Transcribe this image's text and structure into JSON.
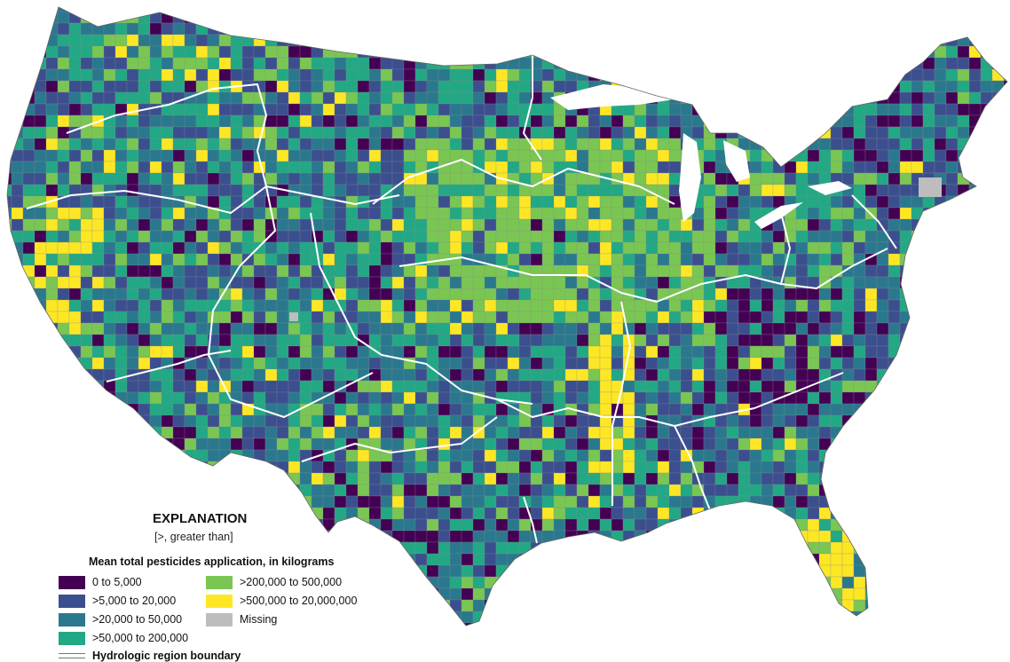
{
  "map": {
    "palette": {
      "class_0": "#440154",
      "class_1": "#3b4f8f",
      "class_2": "#2a788e",
      "class_3": "#22a884",
      "class_4": "#7ac653",
      "class_5": "#fde725",
      "missing": "#bdbdbd"
    },
    "boundary_color": "#ffffff"
  },
  "legend": {
    "title": "EXPLANATION",
    "subtitle": "[>, greater than]",
    "heading": "Mean total pesticides application, in kilograms",
    "items": [
      {
        "label": "0 to 5,000",
        "color": "#440154"
      },
      {
        "label": ">5,000 to 20,000",
        "color": "#3b4f8f"
      },
      {
        "label": ">20,000 to 50,000",
        "color": "#2a788e"
      },
      {
        "label": ">50,000 to 200,000",
        "color": "#22a884"
      },
      {
        "label": ">200,000 to 500,000",
        "color": "#7ac653"
      },
      {
        "label": ">500,000 to 20,000,000",
        "color": "#fde725"
      },
      {
        "label": "Missing",
        "color": "#bdbdbd"
      }
    ],
    "boundary_label": "Hydrologic region boundary"
  }
}
